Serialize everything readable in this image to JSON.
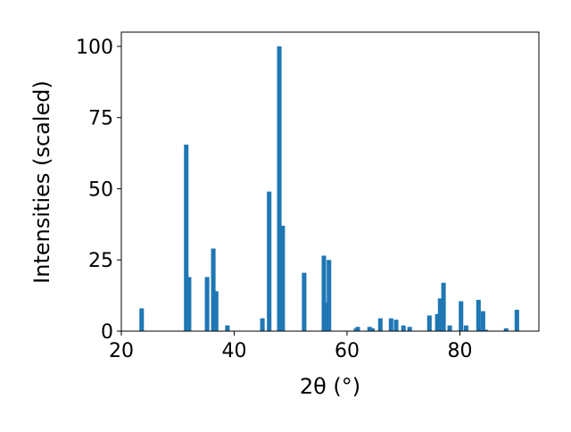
{
  "chart_data": {
    "type": "bar",
    "xlabel": "2θ (°)",
    "ylabel": "Intensities (scaled)",
    "x": [
      23.6,
      31.5,
      32.0,
      35.2,
      36.3,
      36.8,
      38.8,
      45.0,
      46.2,
      48.0,
      48.6,
      52.4,
      55.9,
      56.3,
      56.8,
      61.6,
      61.9,
      64.0,
      64.5,
      65.9,
      67.8,
      68.7,
      70.0,
      71.1,
      74.6,
      76.0,
      76.5,
      77.1,
      78.2,
      80.2,
      81.1,
      83.3,
      84.1,
      84.6,
      88.2,
      90.1
    ],
    "values": [
      8,
      65.5,
      19,
      19,
      29,
      14,
      2,
      4.5,
      49,
      100,
      37,
      20.5,
      26.5,
      10,
      25,
      1,
      1.5,
      1.5,
      1,
      4.5,
      4.5,
      4,
      2,
      1.5,
      5.5,
      6,
      11.5,
      17,
      2,
      10.5,
      2,
      11,
      7,
      0.5,
      1,
      7.5
    ],
    "color": "#1f77b4",
    "xlim": [
      20,
      94
    ],
    "xticks": [
      20,
      40,
      60,
      80
    ],
    "ylim": [
      0,
      105
    ],
    "yticks": [
      0,
      25,
      50,
      75,
      100
    ]
  }
}
